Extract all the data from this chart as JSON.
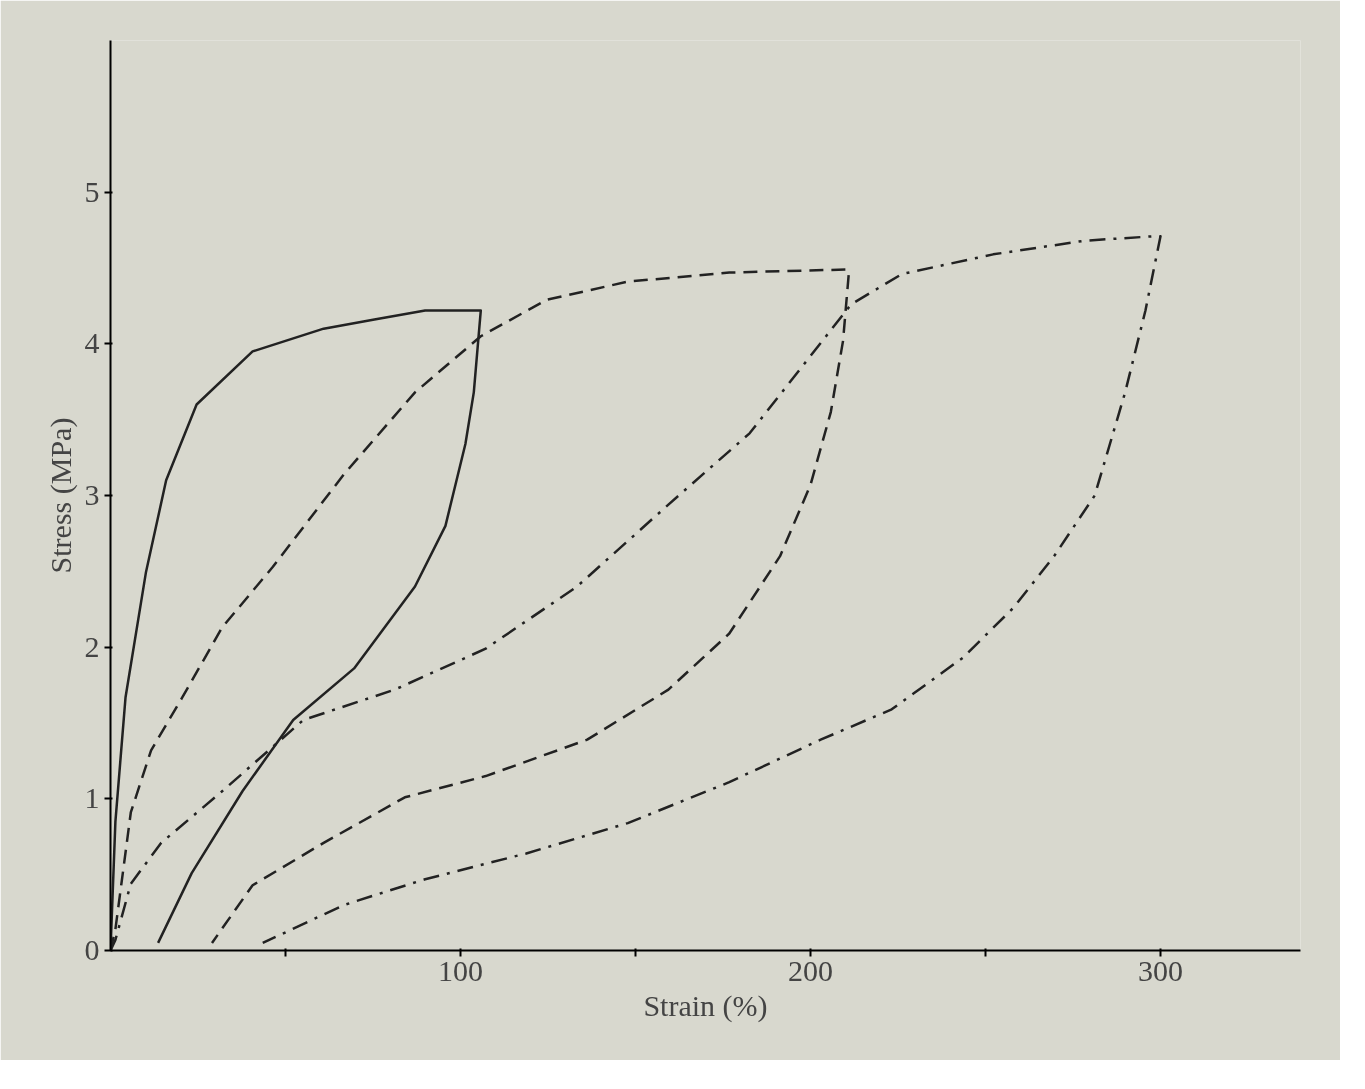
{
  "chart_data": {
    "type": "line",
    "xlabel": "Strain (%)",
    "ylabel": "Stress (MPa)",
    "xlim": [
      0,
      340
    ],
    "ylim": [
      0,
      6
    ],
    "xticks": [
      {
        "value": 50,
        "label": null
      },
      100,
      {
        "value": 150,
        "label": null
      },
      200,
      {
        "value": 250,
        "label": null
      },
      300
    ],
    "yticks": [
      0,
      1,
      2,
      3,
      4,
      5
    ],
    "grid": false,
    "marker": "none",
    "series": [
      {
        "color": "#222222",
        "line_style": "solid",
        "x": [
          0,
          1.4,
          4.3,
          10.1,
          15.9,
          24.6,
          40.6,
          60.9,
          75.4,
          89.9,
          105.8,
          103.8,
          101.4,
          95.7,
          87,
          69.6,
          52.2,
          37.7,
          23.2,
          13.6
        ],
        "values": [
          0,
          0.85,
          1.67,
          2.49,
          3.1,
          3.6,
          3.95,
          4.1,
          4.16,
          4.22,
          4.22,
          3.68,
          3.34,
          2.8,
          2.4,
          1.86,
          1.52,
          1.05,
          0.51,
          0.05
        ]
      },
      {
        "color": "#222222",
        "line_style": "dashed",
        "x": [
          0,
          1.4,
          5.8,
          11.6,
          20.3,
          31.9,
          46.4,
          66.7,
          87,
          105.8,
          124.6,
          147.8,
          176.8,
          210,
          211,
          209.3,
          205.8,
          200,
          191.3,
          176.8,
          159.4,
          136.2,
          107.2,
          84.1,
          60.9,
          40.6,
          29
        ],
        "values": [
          0,
          0.14,
          0.91,
          1.32,
          1.66,
          2.13,
          2.53,
          3.14,
          3.68,
          4.05,
          4.29,
          4.41,
          4.47,
          4.49,
          4.48,
          4.02,
          3.55,
          3.07,
          2.6,
          2.09,
          1.72,
          1.39,
          1.15,
          1.01,
          0.71,
          0.43,
          0.05
        ]
      },
      {
        "color": "#222222",
        "line_style": "dashdot",
        "x": [
          0,
          1.4,
          5.8,
          14.5,
          31.9,
          55.1,
          81.2,
          107.2,
          133.3,
          159.4,
          182.6,
          200,
          211.6,
          226.1,
          252.2,
          278.3,
          298.6,
          300,
          295.7,
          289.9,
          281.2,
          269.6,
          258,
          243.5,
          223.2,
          202.9,
          176.8,
          147.8,
          118.8,
          89.9,
          66.7,
          43.5
        ],
        "values": [
          0,
          0.07,
          0.44,
          0.71,
          1.05,
          1.52,
          1.72,
          1.99,
          2.4,
          2.94,
          3.41,
          3.92,
          4.26,
          4.46,
          4.59,
          4.68,
          4.71,
          4.71,
          4.22,
          3.68,
          3.0,
          2.6,
          2.26,
          1.93,
          1.59,
          1.39,
          1.11,
          0.84,
          0.64,
          0.47,
          0.3,
          0.05
        ]
      }
    ]
  }
}
